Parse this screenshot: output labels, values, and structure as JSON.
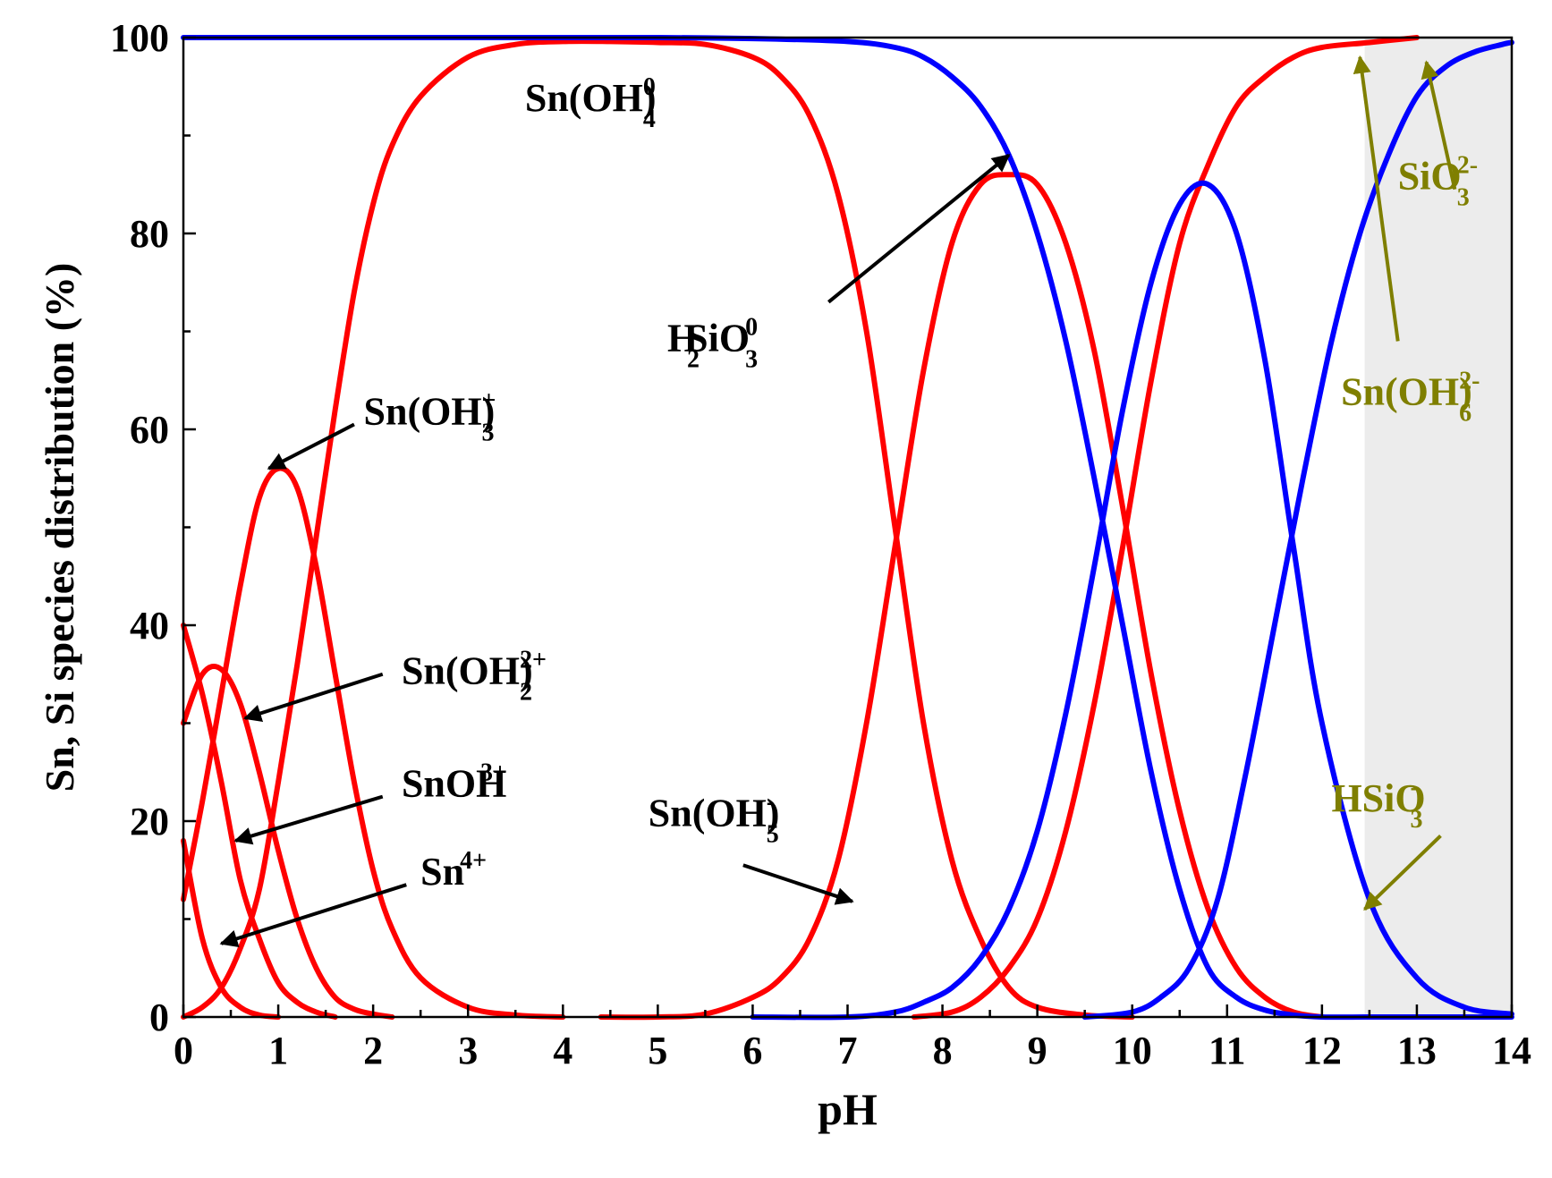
{
  "chart_data": {
    "type": "line",
    "xlabel": "pH",
    "ylabel": "Sn, Si species distribution (%)",
    "xlim": [
      0,
      14
    ],
    "ylim": [
      0,
      100
    ],
    "xticks": [
      "0",
      "1",
      "2",
      "3",
      "4",
      "5",
      "6",
      "7",
      "8",
      "9",
      "10",
      "11",
      "12",
      "13",
      "14"
    ],
    "yticks": [
      "0",
      "20",
      "40",
      "60",
      "80",
      "100"
    ],
    "grid": false,
    "shaded_region": {
      "x": [
        12.45,
        14
      ],
      "color": "#ececec"
    },
    "colors": {
      "sn": "#ff0000",
      "si": "#0000ff",
      "annotation": "#7f7f00",
      "arrow": "#000000"
    },
    "series": [
      {
        "group": "Sn",
        "x": [
          0,
          0.2,
          0.4,
          0.6,
          0.8,
          1.0
        ],
        "y": [
          18,
          8,
          3,
          1,
          0.2,
          0
        ]
      },
      {
        "group": "Sn",
        "x": [
          0,
          0.2,
          0.4,
          0.6,
          0.8,
          1.0,
          1.2,
          1.4,
          1.6
        ],
        "y": [
          40,
          33,
          24,
          14,
          8,
          3.5,
          1.5,
          0.5,
          0
        ]
      },
      {
        "group": "Sn",
        "x": [
          0,
          0.2,
          0.4,
          0.6,
          0.8,
          1.0,
          1.2,
          1.4,
          1.6,
          1.8,
          2.0,
          2.2
        ],
        "y": [
          30,
          35,
          35.5,
          32,
          25,
          17,
          10,
          5,
          2,
          0.8,
          0.3,
          0
        ]
      },
      {
        "group": "Sn",
        "x": [
          0,
          0.2,
          0.4,
          0.6,
          0.8,
          1.0,
          1.2,
          1.4,
          1.6,
          1.8,
          2.0,
          2.2,
          2.5,
          3.0,
          3.5,
          4.0
        ],
        "y": [
          12,
          22,
          33,
          44,
          53,
          56,
          54,
          46,
          35,
          24,
          15,
          9,
          4,
          1,
          0.2,
          0
        ]
      },
      {
        "group": "Sn",
        "x": [
          0,
          0.2,
          0.4,
          0.6,
          0.8,
          1.0,
          1.2,
          1.4,
          1.6,
          1.8,
          2.0,
          2.2,
          2.5,
          3.0,
          3.5,
          4.0,
          4.5,
          5.0,
          5.5,
          6.0,
          6.3,
          6.6,
          6.9,
          7.2,
          7.5,
          7.8,
          8.1,
          8.4,
          8.7,
          9.0,
          9.5,
          10.0
        ],
        "y": [
          0,
          1,
          3,
          7,
          13,
          24,
          36,
          49,
          62,
          74,
          83,
          89,
          94,
          98,
          99.3,
          99.6,
          99.6,
          99.5,
          99.3,
          98,
          96,
          92,
          84,
          70,
          50,
          30,
          16,
          8,
          3,
          1,
          0.2,
          0
        ]
      },
      {
        "group": "Sn",
        "x": [
          4.4,
          5.0,
          5.5,
          6.0,
          6.3,
          6.6,
          6.9,
          7.2,
          7.5,
          7.8,
          8.1,
          8.4,
          8.7,
          9.0,
          9.3,
          9.6,
          9.9,
          10.2,
          10.5,
          10.8,
          11.1,
          11.4,
          11.7,
          12.0
        ],
        "y": [
          0,
          0,
          0.3,
          2,
          4,
          8,
          16,
          30,
          48,
          66,
          79,
          85,
          86,
          85,
          79,
          68,
          52,
          35,
          21,
          11,
          5,
          2,
          0.5,
          0
        ]
      },
      {
        "group": "Sn",
        "x": [
          7.7,
          8.1,
          8.4,
          8.7,
          9.0,
          9.3,
          9.6,
          9.9,
          10.2,
          10.5,
          10.8,
          11.1,
          11.4,
          11.7,
          12.0,
          12.5,
          13.0
        ],
        "y": [
          0,
          0.5,
          2,
          5,
          10,
          19,
          32,
          48,
          65,
          79,
          87,
          93,
          96,
          98,
          99,
          99.5,
          100
        ]
      },
      {
        "group": "Si",
        "x": [
          0,
          1,
          2,
          3,
          4,
          5,
          6,
          7,
          7.5,
          7.8,
          8.1,
          8.4,
          8.7,
          9.0,
          9.3,
          9.6,
          9.9,
          10.2,
          10.5,
          10.8,
          11.1,
          11.4,
          11.7,
          12.0,
          12.5,
          13.0,
          14.0
        ],
        "y": [
          100,
          100,
          100,
          100,
          100,
          100,
          99.9,
          99.6,
          99,
          98,
          96,
          93,
          88,
          80,
          69,
          55,
          40,
          25,
          13,
          5,
          2,
          0.7,
          0.2,
          0,
          0,
          0,
          0
        ]
      },
      {
        "group": "Si",
        "x": [
          6.0,
          7.0,
          7.5,
          7.8,
          8.1,
          8.4,
          8.7,
          9.0,
          9.3,
          9.6,
          9.9,
          10.2,
          10.5,
          10.8,
          11.1,
          11.4,
          11.7,
          12.0,
          12.5,
          13.0,
          13.5,
          14.0
        ],
        "y": [
          0,
          0,
          0.5,
          1.5,
          3,
          6,
          11,
          19,
          31,
          46,
          62,
          75,
          83,
          85,
          80,
          67,
          48,
          30,
          12,
          4,
          1,
          0.3
        ]
      },
      {
        "group": "Si",
        "x": [
          9.5,
          10.0,
          10.3,
          10.6,
          10.9,
          11.2,
          11.5,
          11.8,
          12.1,
          12.4,
          12.7,
          13.0,
          13.3,
          13.6,
          13.9,
          14.0
        ],
        "y": [
          0,
          0.5,
          2,
          5,
          12,
          25,
          40,
          55,
          69,
          80,
          88,
          94,
          97,
          98.5,
          99.3,
          99.5
        ]
      }
    ],
    "annotations": [
      {
        "label": "Sn(OH)",
        "sub": "4",
        "sup": "0",
        "x": 3.6,
        "y": 92.5,
        "color": "black",
        "arrow_from": null,
        "arrow_to": null
      },
      {
        "label": "Sn(OH)",
        "sub": "3",
        "sup": "+",
        "x": 1.9,
        "y": 60.5,
        "color": "black",
        "arrow_from": [
          1.8,
          60.5
        ],
        "arrow_to": [
          0.9,
          56
        ]
      },
      {
        "label": "Sn(OH)",
        "sub": "2",
        "sup": "2+",
        "x": 2.3,
        "y": 34,
        "color": "black",
        "arrow_from": [
          2.1,
          35
        ],
        "arrow_to": [
          0.65,
          30.5
        ]
      },
      {
        "label": "SnOH",
        "sub": "",
        "sup": "3+",
        "x": 2.3,
        "y": 22.5,
        "color": "black",
        "arrow_from": [
          2.1,
          22.5
        ],
        "arrow_to": [
          0.55,
          18
        ]
      },
      {
        "label": "Sn",
        "sub": "",
        "sup": "4+",
        "x": 2.5,
        "y": 13.5,
        "color": "black",
        "arrow_from": [
          2.35,
          13.5
        ],
        "arrow_to": [
          0.4,
          7.5
        ]
      },
      {
        "label": "H",
        "sub": "2",
        "sup": "",
        "x": 5.1,
        "y": 68,
        "color": "black",
        "arrow_from": null,
        "arrow_to": null
      },
      {
        "label": "SiO",
        "sub": "3",
        "sup": "0",
        "x": 5.3,
        "y": 68,
        "color": "black",
        "arrow_from": [
          6.8,
          73
        ],
        "arrow_to": [
          8.7,
          88
        ]
      },
      {
        "label": "Sn(OH)",
        "sub": "5",
        "sup": "-",
        "x": 4.9,
        "y": 19.5,
        "color": "black",
        "arrow_from": [
          5.9,
          15.5
        ],
        "arrow_to": [
          7.05,
          11.8
        ]
      },
      {
        "label": "SiO",
        "sub": "3",
        "sup": "2-",
        "x": 12.8,
        "y": 84.5,
        "color": "olive",
        "arrow_from": [
          13.4,
          84.5
        ],
        "arrow_to": [
          13.1,
          97.5
        ]
      },
      {
        "label": "Sn(OH)",
        "sub": "6",
        "sup": "2-",
        "x": 12.2,
        "y": 62.5,
        "color": "olive",
        "arrow_from": [
          12.8,
          69
        ],
        "arrow_to": [
          12.4,
          98
        ]
      },
      {
        "label": "HSiO",
        "sub": "3",
        "sup": "-",
        "x": 12.1,
        "y": 21,
        "color": "olive",
        "arrow_from": [
          13.25,
          18.5
        ],
        "arrow_to": [
          12.45,
          11
        ]
      }
    ]
  }
}
